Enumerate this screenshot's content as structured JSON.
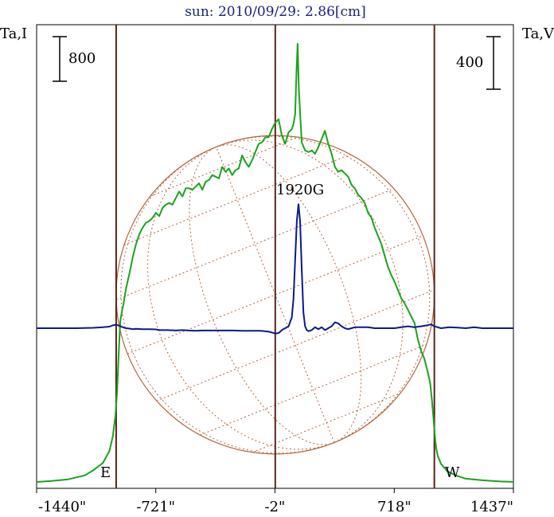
{
  "chart_data": {
    "type": "line",
    "title": "sun: 2010/09/29: 2.86[cm]",
    "ylabel_left": "Ta,I",
    "ylabel_right": "Ta,V",
    "xlim": [
      -1440,
      1437
    ],
    "x_ticks": [
      -1440,
      -721,
      -2,
      718,
      1437
    ],
    "x_tick_labels": [
      "-1440\"",
      "-721\"",
      "-2\"",
      "718\"",
      "1437\""
    ],
    "scale_bar_left": "800",
    "scale_bar_right": "400",
    "limb_labels": {
      "east": "E",
      "west": "W"
    },
    "limb_positions": [
      -960,
      0,
      960
    ],
    "annotation": {
      "text": "1920G",
      "x": 150
    },
    "solar_disk": {
      "radius_arcsec": 960,
      "grid_color": "#b5643a"
    },
    "series": [
      {
        "axis": "left",
        "color": "#1ba31b",
        "x": [
          -1440,
          -1350,
          -1250,
          -1150,
          -1100,
          -1040,
          -1000,
          -980,
          -965,
          -955,
          -945,
          -935,
          -925,
          -915,
          -900,
          -880,
          -860,
          -840,
          -820,
          -800,
          -780,
          -760,
          -740,
          -720,
          -700,
          -680,
          -660,
          -640,
          -620,
          -600,
          -580,
          -560,
          -540,
          -520,
          -500,
          -480,
          -460,
          -440,
          -420,
          -400,
          -380,
          -360,
          -340,
          -320,
          -300,
          -280,
          -260,
          -240,
          -220,
          -200,
          -180,
          -160,
          -140,
          -120,
          -100,
          -80,
          -60,
          -40,
          -20,
          0,
          20,
          40,
          60,
          80,
          100,
          110,
          120,
          128,
          135,
          142,
          150,
          160,
          180,
          200,
          220,
          240,
          260,
          280,
          300,
          320,
          340,
          360,
          380,
          400,
          420,
          440,
          460,
          480,
          500,
          520,
          540,
          560,
          580,
          600,
          620,
          640,
          660,
          680,
          700,
          720,
          740,
          760,
          780,
          800,
          820,
          840,
          860,
          880,
          900,
          920,
          935,
          945,
          952,
          960,
          966,
          972,
          980,
          1000,
          1040,
          1100,
          1150,
          1250,
          1350,
          1437
        ],
        "y": [
          0.0,
          0.03,
          0.08,
          0.2,
          0.35,
          0.58,
          0.95,
          1.4,
          2.0,
          2.7,
          3.9,
          4.9,
          5.2,
          5.45,
          5.9,
          6.35,
          6.85,
          7.25,
          7.55,
          7.75,
          7.9,
          7.95,
          8.05,
          8.2,
          8.1,
          8.35,
          8.45,
          8.5,
          8.45,
          8.65,
          8.85,
          8.7,
          8.95,
          8.95,
          8.9,
          9.0,
          9.1,
          8.9,
          9.15,
          9.2,
          9.35,
          9.3,
          9.25,
          9.6,
          9.45,
          9.55,
          9.35,
          9.5,
          9.55,
          9.95,
          9.75,
          9.6,
          9.8,
          10.05,
          10.3,
          10.35,
          10.5,
          10.5,
          10.75,
          10.95,
          11.05,
          10.55,
          10.3,
          10.65,
          10.75,
          10.9,
          11.2,
          12.5,
          13.35,
          12.0,
          11.25,
          10.35,
          10.1,
          10.05,
          10.1,
          10.0,
          10.2,
          10.45,
          10.7,
          10.3,
          10.0,
          9.6,
          9.45,
          9.5,
          9.4,
          9.3,
          9.05,
          8.95,
          8.75,
          8.65,
          8.5,
          8.2,
          8.05,
          7.75,
          7.5,
          7.25,
          6.9,
          6.55,
          6.3,
          6.1,
          5.85,
          5.6,
          5.45,
          5.25,
          5.05,
          4.85,
          4.35,
          4.0,
          3.75,
          3.35,
          3.0,
          2.5,
          2.1,
          1.6,
          1.25,
          1.0,
          0.8,
          0.55,
          0.32,
          0.18,
          0.1,
          0.05,
          0.02,
          0.0
        ]
      },
      {
        "axis": "right",
        "color": "#0a1a8c",
        "x": [
          -1440,
          -1200,
          -1100,
          -1040,
          -1000,
          -980,
          -960,
          -940,
          -920,
          -900,
          -880,
          -860,
          -840,
          -800,
          -760,
          -720,
          -700,
          -650,
          -600,
          -560,
          -520,
          -480,
          -440,
          -400,
          -350,
          -300,
          -250,
          -200,
          -150,
          -100,
          -80,
          -60,
          -40,
          -20,
          0,
          20,
          40,
          60,
          80,
          100,
          110,
          120,
          130,
          140,
          150,
          160,
          170,
          180,
          190,
          200,
          220,
          240,
          260,
          280,
          300,
          320,
          340,
          360,
          380,
          400,
          420,
          440,
          460,
          480,
          520,
          560,
          600,
          640,
          680,
          720,
          760,
          800,
          840,
          880,
          920,
          940,
          960,
          980,
          1000,
          1050,
          1100,
          1150,
          1200,
          1250,
          1300,
          1350,
          1437
        ],
        "y": [
          0.0,
          0.0,
          0.02,
          0.05,
          0.08,
          0.15,
          0.18,
          0.12,
          0.05,
          0.0,
          -0.02,
          -0.05,
          -0.03,
          -0.05,
          -0.05,
          -0.06,
          -0.1,
          -0.1,
          -0.12,
          -0.1,
          -0.12,
          -0.13,
          -0.12,
          -0.12,
          -0.12,
          -0.12,
          -0.12,
          -0.13,
          -0.13,
          -0.13,
          -0.14,
          -0.16,
          -0.18,
          -0.22,
          -0.27,
          -0.25,
          -0.1,
          0.0,
          0.1,
          0.55,
          1.5,
          3.5,
          5.5,
          6.35,
          5.5,
          3.0,
          0.8,
          0.1,
          -0.1,
          -0.15,
          -0.1,
          0.05,
          -0.05,
          0.05,
          -0.1,
          0.0,
          0.1,
          0.3,
          0.25,
          0.1,
          0.0,
          -0.05,
          0.0,
          0.05,
          0.05,
          0.05,
          0.0,
          0.0,
          0.0,
          0.0,
          0.05,
          0.1,
          0.05,
          0.1,
          0.15,
          0.2,
          0.1,
          0.05,
          0.0,
          0.05,
          0.03,
          0.0,
          0.05,
          0.0,
          0.0,
          0.0,
          0.0
        ]
      }
    ]
  }
}
